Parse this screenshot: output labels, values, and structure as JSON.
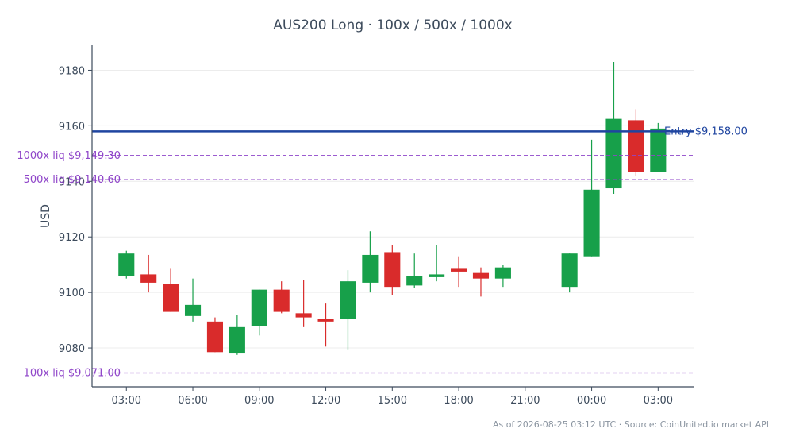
{
  "chart_data": {
    "type": "candlestick",
    "title": "AUS200 Long · 100x / 500x / 1000x",
    "xlabel": "",
    "ylabel": "USD",
    "ylim": [
      9066,
      9189
    ],
    "y_ticks": [
      9080,
      9100,
      9120,
      9140,
      9160,
      9180
    ],
    "x_ticks": [
      "03:00",
      "06:00",
      "09:00",
      "12:00",
      "15:00",
      "18:00",
      "21:00",
      "00:00",
      "03:00"
    ],
    "x_tick_hours": [
      3,
      6,
      9,
      12,
      15,
      18,
      21,
      24,
      27
    ],
    "xlim_hours": [
      1.45,
      28.6
    ],
    "grid": "horizontal",
    "colors": {
      "up": "#17a04a",
      "down": "#d92b2b",
      "entry": "#1f45a0",
      "liq": "#8f45c9",
      "axis": "#3d4b5c",
      "grid": "#ececec"
    },
    "candles": [
      {
        "hour": 3,
        "open": 9106.0,
        "high": 9115.0,
        "low": 9105.0,
        "close": 9114.0
      },
      {
        "hour": 4,
        "open": 9106.5,
        "high": 9113.5,
        "low": 9100.0,
        "close": 9103.5
      },
      {
        "hour": 5,
        "open": 9103.0,
        "high": 9108.5,
        "low": 9093.0,
        "close": 9093.0
      },
      {
        "hour": 6,
        "open": 9091.5,
        "high": 9105.0,
        "low": 9089.5,
        "close": 9095.5
      },
      {
        "hour": 7,
        "open": 9089.5,
        "high": 9091.0,
        "low": 9078.5,
        "close": 9078.5
      },
      {
        "hour": 8,
        "open": 9078.0,
        "high": 9092.0,
        "low": 9077.5,
        "close": 9087.5
      },
      {
        "hour": 9,
        "open": 9088.0,
        "high": 9101.0,
        "low": 9084.5,
        "close": 9101.0
      },
      {
        "hour": 10,
        "open": 9101.0,
        "high": 9104.0,
        "low": 9092.5,
        "close": 9093.0
      },
      {
        "hour": 11,
        "open": 9092.5,
        "high": 9104.5,
        "low": 9087.5,
        "close": 9091.0
      },
      {
        "hour": 12,
        "open": 9090.5,
        "high": 9096.0,
        "low": 9080.5,
        "close": 9089.5
      },
      {
        "hour": 13,
        "open": 9090.5,
        "high": 9108.0,
        "low": 9079.5,
        "close": 9104.0
      },
      {
        "hour": 14,
        "open": 9103.5,
        "high": 9122.0,
        "low": 9100.0,
        "close": 9113.5
      },
      {
        "hour": 15,
        "open": 9114.5,
        "high": 9117.0,
        "low": 9099.0,
        "close": 9102.0
      },
      {
        "hour": 16,
        "open": 9102.5,
        "high": 9114.0,
        "low": 9101.5,
        "close": 9106.0
      },
      {
        "hour": 17,
        "open": 9105.5,
        "high": 9117.0,
        "low": 9104.0,
        "close": 9106.5
      },
      {
        "hour": 18,
        "open": 9108.5,
        "high": 9113.0,
        "low": 9102.0,
        "close": 9107.5
      },
      {
        "hour": 19,
        "open": 9107.0,
        "high": 9109.0,
        "low": 9098.5,
        "close": 9105.0
      },
      {
        "hour": 20,
        "open": 9105.0,
        "high": 9110.0,
        "low": 9102.0,
        "close": 9109.0
      },
      {
        "hour": 23,
        "open": 9102.0,
        "high": 9114.0,
        "low": 9100.0,
        "close": 9114.0
      },
      {
        "hour": 24,
        "open": 9113.0,
        "high": 9155.0,
        "low": 9113.0,
        "close": 9137.0
      },
      {
        "hour": 25,
        "open": 9137.5,
        "high": 9183.0,
        "low": 9135.5,
        "close": 9162.5
      },
      {
        "hour": 26,
        "open": 9162.0,
        "high": 9166.0,
        "low": 9142.0,
        "close": 9143.5
      },
      {
        "hour": 27,
        "open": 9143.5,
        "high": 9161.0,
        "low": 9143.5,
        "close": 9159.0
      }
    ],
    "lines": [
      {
        "name": "entry",
        "value": 9158.0,
        "label": "Entry $9,158.00",
        "style": "solid"
      },
      {
        "name": "liq-1000x",
        "value": 9149.3,
        "label": "1000x liq $9,149.30",
        "style": "dashed"
      },
      {
        "name": "liq-500x",
        "value": 9140.6,
        "label": "500x liq $9,140.60",
        "style": "dashed"
      },
      {
        "name": "liq-100x",
        "value": 9071.0,
        "label": "100x liq $9,071.00",
        "style": "dashed"
      }
    ]
  },
  "footer": "As of 2026-08-25 03:12 UTC · Source: CoinUnited.io market API"
}
